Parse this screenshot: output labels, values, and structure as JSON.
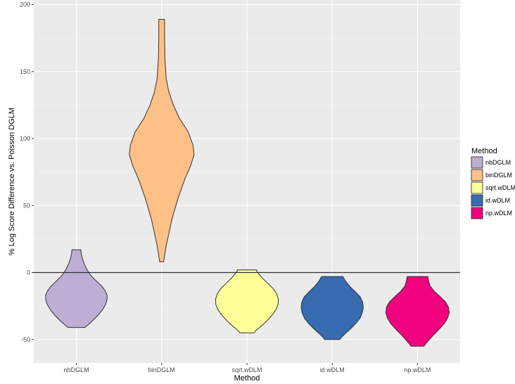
{
  "chart_data": {
    "type": "violin",
    "xlabel": "Method",
    "ylabel": "% Log Score Difference vs. Poisson DGLM",
    "ylim": [
      -66,
      200
    ],
    "yticks": [
      -50,
      0,
      50,
      100,
      150,
      200
    ],
    "hline": 0,
    "grid": true,
    "legend_title": "Method",
    "legend_position": "right",
    "categories": [
      "nbDGLM",
      "binDGLM",
      "sqrt.wDLM",
      "id.wDLM",
      "np.wDLM"
    ],
    "series": [
      {
        "name": "nbDGLM",
        "color": "#BEAED4",
        "range": [
          -41,
          17
        ],
        "profile": [
          [
            -41,
            0.26
          ],
          [
            -39,
            0.36
          ],
          [
            -36,
            0.5
          ],
          [
            -32,
            0.66
          ],
          [
            -28,
            0.8
          ],
          [
            -24,
            0.9
          ],
          [
            -20,
            0.95
          ],
          [
            -17,
            0.95
          ],
          [
            -14,
            0.9
          ],
          [
            -10,
            0.78
          ],
          [
            -6,
            0.6
          ],
          [
            -2,
            0.44
          ],
          [
            2,
            0.33
          ],
          [
            6,
            0.25
          ],
          [
            10,
            0.19
          ],
          [
            14,
            0.15
          ],
          [
            17,
            0.14
          ]
        ]
      },
      {
        "name": "binDGLM",
        "color": "#FDC086",
        "range": [
          8,
          189
        ],
        "profile": [
          [
            8,
            0.06
          ],
          [
            20,
            0.14
          ],
          [
            40,
            0.32
          ],
          [
            55,
            0.5
          ],
          [
            70,
            0.72
          ],
          [
            80,
            0.9
          ],
          [
            88,
            1.0
          ],
          [
            95,
            0.97
          ],
          [
            105,
            0.82
          ],
          [
            115,
            0.55
          ],
          [
            125,
            0.36
          ],
          [
            135,
            0.22
          ],
          [
            145,
            0.14
          ],
          [
            160,
            0.1
          ],
          [
            175,
            0.09
          ],
          [
            189,
            0.09
          ]
        ]
      },
      {
        "name": "sqrt.wDLM",
        "color": "#FFFF99",
        "range": [
          -45,
          2
        ],
        "profile": [
          [
            -45,
            0.22
          ],
          [
            -43,
            0.29
          ],
          [
            -40,
            0.44
          ],
          [
            -36,
            0.62
          ],
          [
            -32,
            0.77
          ],
          [
            -28,
            0.89
          ],
          [
            -24,
            0.96
          ],
          [
            -20,
            0.97
          ],
          [
            -16,
            0.92
          ],
          [
            -12,
            0.81
          ],
          [
            -8,
            0.64
          ],
          [
            -4,
            0.47
          ],
          [
            -1,
            0.37
          ],
          [
            1,
            0.3
          ],
          [
            2,
            0.3
          ]
        ]
      },
      {
        "name": "id.wDLM",
        "color": "#386CB0",
        "range": [
          -50,
          -3
        ],
        "profile": [
          [
            -50,
            0.23
          ],
          [
            -48,
            0.3
          ],
          [
            -45,
            0.43
          ],
          [
            -42,
            0.57
          ],
          [
            -38,
            0.73
          ],
          [
            -34,
            0.86
          ],
          [
            -30,
            0.93
          ],
          [
            -26,
            0.96
          ],
          [
            -22,
            0.94
          ],
          [
            -18,
            0.86
          ],
          [
            -14,
            0.7
          ],
          [
            -10,
            0.53
          ],
          [
            -6,
            0.4
          ],
          [
            -3,
            0.33
          ]
        ]
      },
      {
        "name": "np.wDLM",
        "color": "#F0027F",
        "range": [
          -55,
          -3
        ],
        "profile": [
          [
            -55,
            0.2
          ],
          [
            -53,
            0.26
          ],
          [
            -50,
            0.37
          ],
          [
            -46,
            0.52
          ],
          [
            -42,
            0.68
          ],
          [
            -38,
            0.83
          ],
          [
            -34,
            0.93
          ],
          [
            -30,
            0.98
          ],
          [
            -26,
            0.96
          ],
          [
            -22,
            0.87
          ],
          [
            -18,
            0.7
          ],
          [
            -14,
            0.52
          ],
          [
            -10,
            0.39
          ],
          [
            -6,
            0.34
          ],
          [
            -3,
            0.32
          ]
        ]
      }
    ]
  }
}
